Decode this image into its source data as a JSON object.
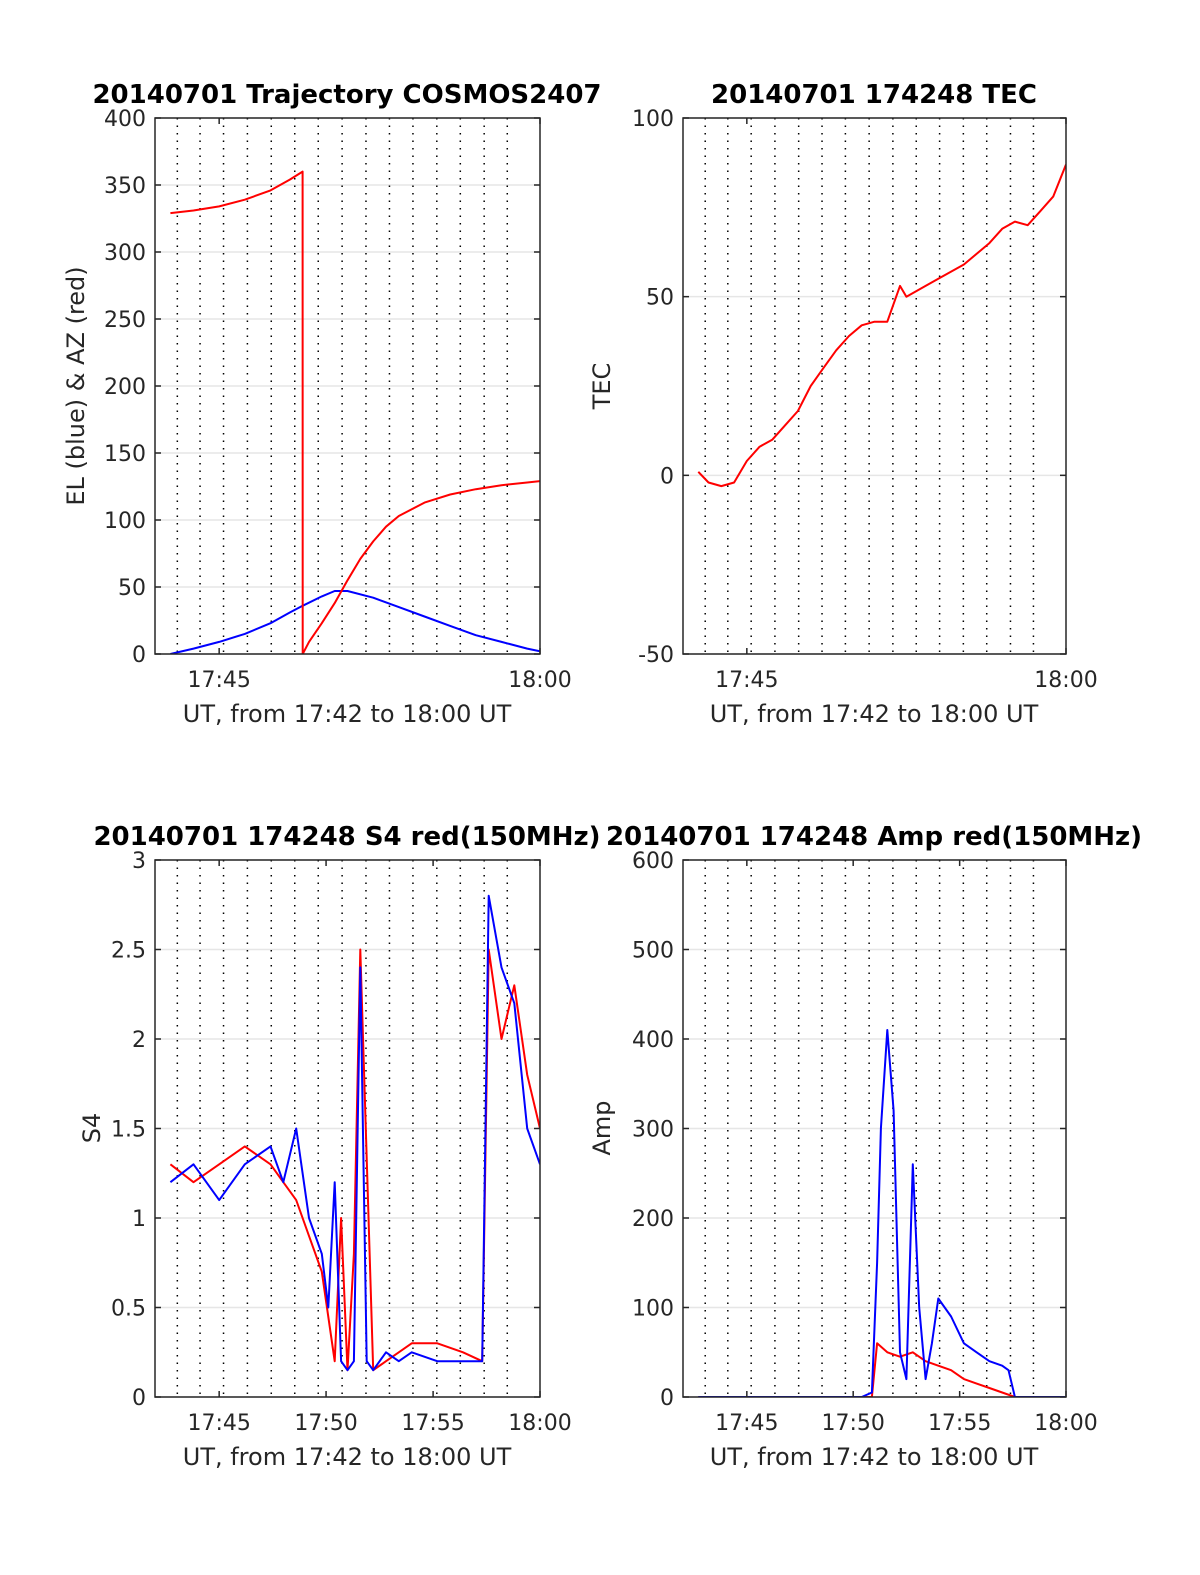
{
  "figure": {
    "background": "#ffffff"
  },
  "colors": {
    "red": "#ff0000",
    "blue": "#0000ff",
    "grid": "#e6e6e6",
    "vgrid": "#000000",
    "axis": "#262626"
  },
  "chart_data": [
    {
      "type": "line",
      "title": "20140701 Trajectory COSMOS2407",
      "xlabel": "UT, from 17:42 to 18:00 UT",
      "ylabel": "EL (blue) & AZ (red)",
      "xlim": [
        17.7,
        18.0
      ],
      "ylim": [
        0,
        400
      ],
      "yticks": [
        0,
        50,
        100,
        150,
        200,
        250,
        300,
        350,
        400
      ],
      "xticks": [
        {
          "value": 17.75,
          "label": "17:45"
        },
        {
          "value": 18.0,
          "label": "18:00"
        }
      ],
      "grid": true,
      "series": [
        {
          "color": "#0000ff",
          "x": [
            17.712,
            17.73,
            17.75,
            17.77,
            17.79,
            17.805,
            17.815,
            17.83,
            17.84,
            17.85,
            17.87,
            17.89,
            17.91,
            17.93,
            17.95,
            17.97,
            17.99,
            18.0
          ],
          "y": [
            0,
            4,
            9,
            15,
            23,
            31,
            36,
            43,
            47,
            47,
            42,
            35,
            28,
            21,
            14,
            9,
            4,
            2
          ]
        },
        {
          "color": "#ff0000",
          "x": [
            17.712,
            17.73,
            17.75,
            17.77,
            17.79,
            17.805,
            17.815,
            17.8151,
            17.82,
            17.83,
            17.84,
            17.85,
            17.86,
            17.87,
            17.88,
            17.89,
            17.91,
            17.93,
            17.95,
            17.97,
            17.99,
            18.0
          ],
          "y": [
            329,
            331,
            334,
            339,
            346,
            354,
            360,
            0,
            9,
            23,
            38,
            55,
            71,
            84,
            95,
            103,
            113,
            119,
            123,
            126,
            128,
            129
          ]
        }
      ]
    },
    {
      "type": "line",
      "title": "20140701 174248 TEC",
      "xlabel": "UT, from 17:42 to 18:00 UT",
      "ylabel": "TEC",
      "xlim": [
        17.7,
        18.0
      ],
      "ylim": [
        -50,
        100
      ],
      "yticks": [
        -50,
        0,
        50,
        100
      ],
      "xticks": [
        {
          "value": 17.75,
          "label": "17:45"
        },
        {
          "value": 18.0,
          "label": "18:00"
        }
      ],
      "grid": true,
      "series": [
        {
          "color": "#ff0000",
          "x": [
            17.712,
            17.72,
            17.73,
            17.74,
            17.75,
            17.76,
            17.77,
            17.78,
            17.79,
            17.8,
            17.81,
            17.82,
            17.83,
            17.84,
            17.85,
            17.86,
            17.87,
            17.875,
            17.88,
            17.89,
            17.9,
            17.92,
            17.94,
            17.95,
            17.96,
            17.97,
            17.98,
            17.99,
            18.0
          ],
          "y": [
            1,
            -2,
            -3,
            -2,
            4,
            8,
            10,
            14,
            18,
            25,
            30,
            35,
            39,
            42,
            43,
            43,
            53,
            50,
            51,
            53,
            55,
            59,
            65,
            69,
            71,
            70,
            74,
            78,
            87
          ]
        }
      ]
    },
    {
      "type": "line",
      "title": "20140701 174248 S4 red(150MHz)",
      "xlabel": "UT, from 17:42 to 18:00 UT",
      "ylabel": "S4",
      "xlim": [
        17.7,
        18.0
      ],
      "ylim": [
        0,
        3
      ],
      "yticks": [
        0,
        0.5,
        1,
        1.5,
        2,
        2.5,
        3
      ],
      "xticks": [
        {
          "value": 17.75,
          "label": "17:45"
        },
        {
          "value": 17.8333,
          "label": "17:50"
        },
        {
          "value": 17.9167,
          "label": "17:55"
        },
        {
          "value": 18.0,
          "label": "18:00"
        }
      ],
      "grid": true,
      "series": [
        {
          "color": "#ff0000",
          "x": [
            17.712,
            17.73,
            17.75,
            17.77,
            17.79,
            17.8,
            17.81,
            17.82,
            17.83,
            17.84,
            17.845,
            17.85,
            17.855,
            17.86,
            17.87,
            17.88,
            17.89,
            17.9,
            17.92,
            17.94,
            17.955,
            17.96,
            17.97,
            17.98,
            17.99,
            18.0
          ],
          "y": [
            1.3,
            1.2,
            1.3,
            1.4,
            1.3,
            1.2,
            1.1,
            0.9,
            0.7,
            0.2,
            1.0,
            0.15,
            0.8,
            2.5,
            0.15,
            0.2,
            0.25,
            0.3,
            0.3,
            0.25,
            0.2,
            2.5,
            2.0,
            2.3,
            1.8,
            1.5
          ]
        },
        {
          "color": "#0000ff",
          "x": [
            17.712,
            17.73,
            17.75,
            17.77,
            17.79,
            17.8,
            17.81,
            17.82,
            17.83,
            17.835,
            17.84,
            17.845,
            17.85,
            17.855,
            17.86,
            17.865,
            17.87,
            17.88,
            17.89,
            17.9,
            17.92,
            17.94,
            17.955,
            17.96,
            17.97,
            17.98,
            17.99,
            18.0
          ],
          "y": [
            1.2,
            1.3,
            1.1,
            1.3,
            1.4,
            1.2,
            1.5,
            1.0,
            0.8,
            0.5,
            1.2,
            0.2,
            0.15,
            0.2,
            2.4,
            0.2,
            0.15,
            0.25,
            0.2,
            0.25,
            0.2,
            0.2,
            0.2,
            2.8,
            2.4,
            2.2,
            1.5,
            1.3
          ]
        }
      ]
    },
    {
      "type": "line",
      "title": "20140701 174248 Amp red(150MHz)",
      "xlabel": "UT, from 17:42 to 18:00 UT",
      "ylabel": "Amp",
      "xlim": [
        17.7,
        18.0
      ],
      "ylim": [
        0,
        600
      ],
      "yticks": [
        0,
        100,
        200,
        300,
        400,
        500,
        600
      ],
      "xticks": [
        {
          "value": 17.75,
          "label": "17:45"
        },
        {
          "value": 17.8333,
          "label": "17:50"
        },
        {
          "value": 17.9167,
          "label": "17:55"
        },
        {
          "value": 18.0,
          "label": "18:00"
        }
      ],
      "grid": true,
      "series": [
        {
          "color": "#ff0000",
          "x": [
            17.712,
            17.84,
            17.848,
            17.852,
            17.86,
            17.87,
            17.88,
            17.89,
            17.9,
            17.91,
            17.92,
            17.93,
            17.94,
            17.95,
            17.96,
            18.0
          ],
          "y": [
            0,
            0,
            0,
            60,
            50,
            45,
            50,
            40,
            35,
            30,
            20,
            15,
            10,
            5,
            0,
            0
          ]
        },
        {
          "color": "#0000ff",
          "x": [
            17.712,
            17.84,
            17.848,
            17.852,
            17.855,
            17.86,
            17.865,
            17.87,
            17.875,
            17.88,
            17.885,
            17.89,
            17.895,
            17.9,
            17.91,
            17.92,
            17.93,
            17.94,
            17.95,
            17.955,
            17.96,
            18.0
          ],
          "y": [
            0,
            0,
            5,
            150,
            300,
            410,
            320,
            50,
            20,
            260,
            100,
            20,
            60,
            110,
            90,
            60,
            50,
            40,
            35,
            30,
            0,
            0
          ]
        }
      ]
    }
  ]
}
